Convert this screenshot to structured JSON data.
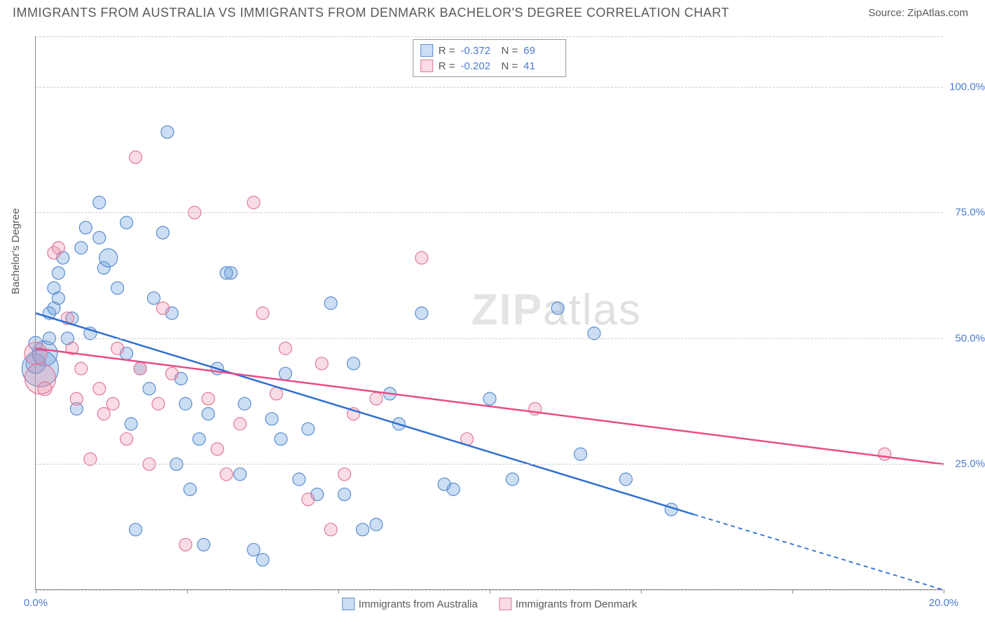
{
  "title": "IMMIGRANTS FROM AUSTRALIA VS IMMIGRANTS FROM DENMARK BACHELOR'S DEGREE CORRELATION CHART",
  "source": "Source: ZipAtlas.com",
  "ylabel": "Bachelor's Degree",
  "watermark_bold": "ZIP",
  "watermark_light": "atlas",
  "chart": {
    "type": "scatter",
    "xlim": [
      0,
      20
    ],
    "ylim": [
      0,
      110
    ],
    "xtick_positions": [
      0,
      3.33,
      6.67,
      10,
      13.33,
      16.67,
      20
    ],
    "xtick_labels": [
      "0.0%",
      "",
      "",
      "",
      "",
      "",
      "20.0%"
    ],
    "ytick_positions": [
      25,
      50,
      75,
      100
    ],
    "ytick_labels": [
      "25.0%",
      "50.0%",
      "75.0%",
      "100.0%"
    ],
    "grid_positions_extra": [
      0,
      110
    ],
    "background_color": "#ffffff",
    "grid_color": "#cccccc",
    "axis_color": "#888888",
    "label_fontsize": 15,
    "title_fontsize": 18,
    "series": [
      {
        "name": "Immigrants from Australia",
        "R": "-0.372",
        "N": "69",
        "color_fill": "rgba(110,160,220,0.35)",
        "color_stroke": "#5a8dd0",
        "line_color": "#2f6fd0",
        "line_solid": {
          "x1": 0,
          "y1": 55,
          "x2": 14.5,
          "y2": 15
        },
        "line_dash": {
          "x1": 14.5,
          "y1": 15,
          "x2": 20,
          "y2": 0
        },
        "points": [
          [
            0.2,
            47,
            18
          ],
          [
            0.0,
            45,
            14
          ],
          [
            0.0,
            49,
            10
          ],
          [
            0.1,
            44,
            26
          ],
          [
            0.3,
            50,
            9
          ],
          [
            0.3,
            55,
            9
          ],
          [
            0.4,
            56,
            9
          ],
          [
            0.4,
            60,
            9
          ],
          [
            0.5,
            63,
            9
          ],
          [
            0.6,
            66,
            9
          ],
          [
            0.5,
            58,
            9
          ],
          [
            0.8,
            54,
            9
          ],
          [
            1.0,
            68,
            9
          ],
          [
            1.1,
            72,
            9
          ],
          [
            1.4,
            77,
            9
          ],
          [
            1.4,
            70,
            9
          ],
          [
            1.5,
            64,
            9
          ],
          [
            1.6,
            66,
            13
          ],
          [
            1.8,
            60,
            9
          ],
          [
            2.0,
            73,
            9
          ],
          [
            2.0,
            47,
            9
          ],
          [
            2.1,
            33,
            9
          ],
          [
            2.2,
            12,
            9
          ],
          [
            2.3,
            44,
            9
          ],
          [
            2.5,
            40,
            9
          ],
          [
            2.6,
            58,
            9
          ],
          [
            2.8,
            71,
            9
          ],
          [
            2.9,
            91,
            9
          ],
          [
            3.0,
            55,
            9
          ],
          [
            3.1,
            25,
            9
          ],
          [
            3.2,
            42,
            9
          ],
          [
            3.3,
            37,
            9
          ],
          [
            3.4,
            20,
            9
          ],
          [
            3.6,
            30,
            9
          ],
          [
            3.7,
            9,
            9
          ],
          [
            3.8,
            35,
            9
          ],
          [
            4.0,
            44,
            9
          ],
          [
            4.2,
            63,
            9
          ],
          [
            4.3,
            63,
            9
          ],
          [
            4.5,
            23,
            9
          ],
          [
            4.6,
            37,
            9
          ],
          [
            4.8,
            8,
            9
          ],
          [
            5.0,
            6,
            9
          ],
          [
            5.2,
            34,
            9
          ],
          [
            5.4,
            30,
            9
          ],
          [
            5.5,
            43,
            9
          ],
          [
            5.8,
            22,
            9
          ],
          [
            6.0,
            32,
            9
          ],
          [
            6.2,
            19,
            9
          ],
          [
            6.5,
            57,
            9
          ],
          [
            6.8,
            19,
            9
          ],
          [
            7.0,
            45,
            9
          ],
          [
            7.2,
            12,
            9
          ],
          [
            7.5,
            13,
            9
          ],
          [
            7.8,
            39,
            9
          ],
          [
            8.0,
            33,
            9
          ],
          [
            8.5,
            55,
            9
          ],
          [
            9.0,
            21,
            9
          ],
          [
            9.2,
            20,
            9
          ],
          [
            10.0,
            38,
            9
          ],
          [
            10.5,
            22,
            9
          ],
          [
            11.5,
            56,
            9
          ],
          [
            12.0,
            27,
            9
          ],
          [
            12.3,
            51,
            9
          ],
          [
            13.0,
            22,
            9
          ],
          [
            14.0,
            16,
            9
          ],
          [
            0.7,
            50,
            9
          ],
          [
            1.2,
            51,
            9
          ],
          [
            0.9,
            36,
            9
          ]
        ]
      },
      {
        "name": "Immigrants from Denmark",
        "R": "-0.202",
        "N": "41",
        "color_fill": "rgba(235,140,165,0.30)",
        "color_stroke": "#e07a9a",
        "line_color": "#e94b86",
        "line_solid": {
          "x1": 0,
          "y1": 48,
          "x2": 20,
          "y2": 25
        },
        "line_dash": null,
        "points": [
          [
            0.0,
            47,
            16
          ],
          [
            0.1,
            42,
            22
          ],
          [
            0.2,
            40,
            10
          ],
          [
            0.4,
            67,
            9
          ],
          [
            0.5,
            68,
            9
          ],
          [
            0.7,
            54,
            9
          ],
          [
            0.8,
            48,
            9
          ],
          [
            0.9,
            38,
            9
          ],
          [
            1.0,
            44,
            9
          ],
          [
            1.2,
            26,
            9
          ],
          [
            1.4,
            40,
            9
          ],
          [
            1.5,
            35,
            9
          ],
          [
            1.7,
            37,
            9
          ],
          [
            1.8,
            48,
            9
          ],
          [
            2.0,
            30,
            9
          ],
          [
            2.2,
            86,
            9
          ],
          [
            2.3,
            44,
            9
          ],
          [
            2.5,
            25,
            9
          ],
          [
            2.7,
            37,
            9
          ],
          [
            2.8,
            56,
            9
          ],
          [
            3.0,
            43,
            9
          ],
          [
            3.3,
            9,
            9
          ],
          [
            3.5,
            75,
            9
          ],
          [
            3.8,
            38,
            9
          ],
          [
            4.0,
            28,
            9
          ],
          [
            4.2,
            23,
            9
          ],
          [
            4.5,
            33,
            9
          ],
          [
            4.8,
            77,
            9
          ],
          [
            5.0,
            55,
            9
          ],
          [
            5.3,
            39,
            9
          ],
          [
            5.5,
            48,
            9
          ],
          [
            6.0,
            18,
            9
          ],
          [
            6.3,
            45,
            9
          ],
          [
            6.5,
            12,
            9
          ],
          [
            6.8,
            23,
            9
          ],
          [
            7.0,
            35,
            9
          ],
          [
            7.5,
            38,
            9
          ],
          [
            8.5,
            66,
            9
          ],
          [
            9.5,
            30,
            9
          ],
          [
            11.0,
            36,
            9
          ],
          [
            18.7,
            27,
            9
          ]
        ]
      }
    ]
  },
  "legend_bottom": [
    {
      "label": "Immigrants from Australia"
    },
    {
      "label": "Immigrants from Denmark"
    }
  ]
}
